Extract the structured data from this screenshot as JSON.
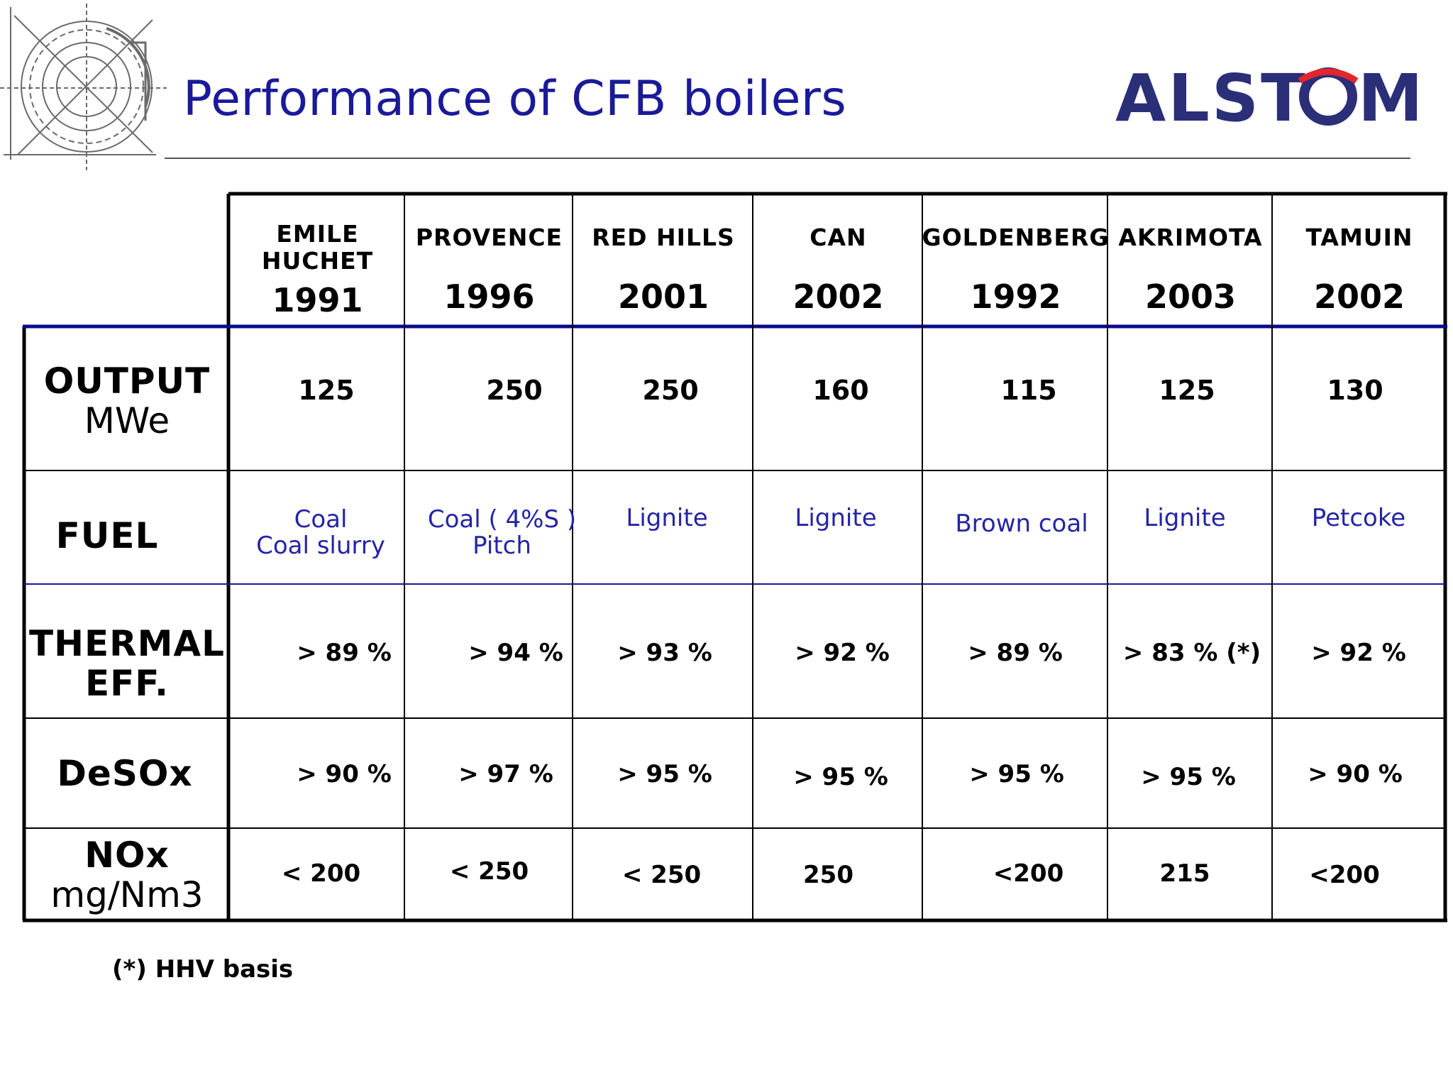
{
  "slide": {
    "title": "Performance of CFB boilers",
    "brand": "ALSTOM",
    "footnote": "(*) HHV basis",
    "colors": {
      "title": "#1a1a99",
      "brand": "#2b2f78",
      "brand_accent": "#e3262b",
      "header_rule": "#0a0a8c",
      "fuel_text": "#2424a6"
    },
    "icons": [
      "technical-drawing-icon"
    ]
  },
  "table": {
    "columns": [
      {
        "name": "EMILE HUCHET",
        "name_line1": "EMILE",
        "name_line2": "HUCHET",
        "year": "1991"
      },
      {
        "name": "PROVENCE",
        "year": "1996"
      },
      {
        "name": "RED HILLS",
        "year": "2001"
      },
      {
        "name": "CAN",
        "year": "2002"
      },
      {
        "name": "GOLDENBERG",
        "year": "1992"
      },
      {
        "name": "AKRIMOTA",
        "year": "2003"
      },
      {
        "name": "TAMUIN",
        "year": "2002"
      }
    ],
    "rows": {
      "output": {
        "label": "OUTPUT",
        "unit": "MWe",
        "values": [
          "125",
          "250",
          "250",
          "160",
          "115",
          "125",
          "130"
        ]
      },
      "fuel": {
        "label": "FUEL",
        "values": [
          {
            "line1": "Coal",
            "line2": "Coal slurry"
          },
          {
            "line1": "Coal ( 4%S )",
            "line2": "Pitch"
          },
          {
            "line1": "Lignite",
            "line2": ""
          },
          {
            "line1": "Lignite",
            "line2": ""
          },
          {
            "line1": "Brown coal",
            "line2": ""
          },
          {
            "line1": "Lignite",
            "line2": ""
          },
          {
            "line1": "Petcoke",
            "line2": ""
          }
        ]
      },
      "thermal": {
        "label_line1": "THERMAL",
        "label_line2": "EFF.",
        "values": [
          "> 89 %",
          "> 94 %",
          "> 93 %",
          "> 92 %",
          "> 89 %",
          "> 83 % (*)",
          "> 92 %"
        ]
      },
      "desox": {
        "label": "DeSOx",
        "values": [
          "> 90 %",
          "> 97 %",
          "> 95 %",
          "> 95 %",
          "> 95 %",
          "> 95 %",
          "> 90 %"
        ]
      },
      "nox": {
        "label": "NOx",
        "unit": "mg/Nm3",
        "values": [
          "< 200",
          "< 250",
          "< 250",
          "250",
          "<200",
          "215",
          "<200"
        ]
      }
    }
  }
}
